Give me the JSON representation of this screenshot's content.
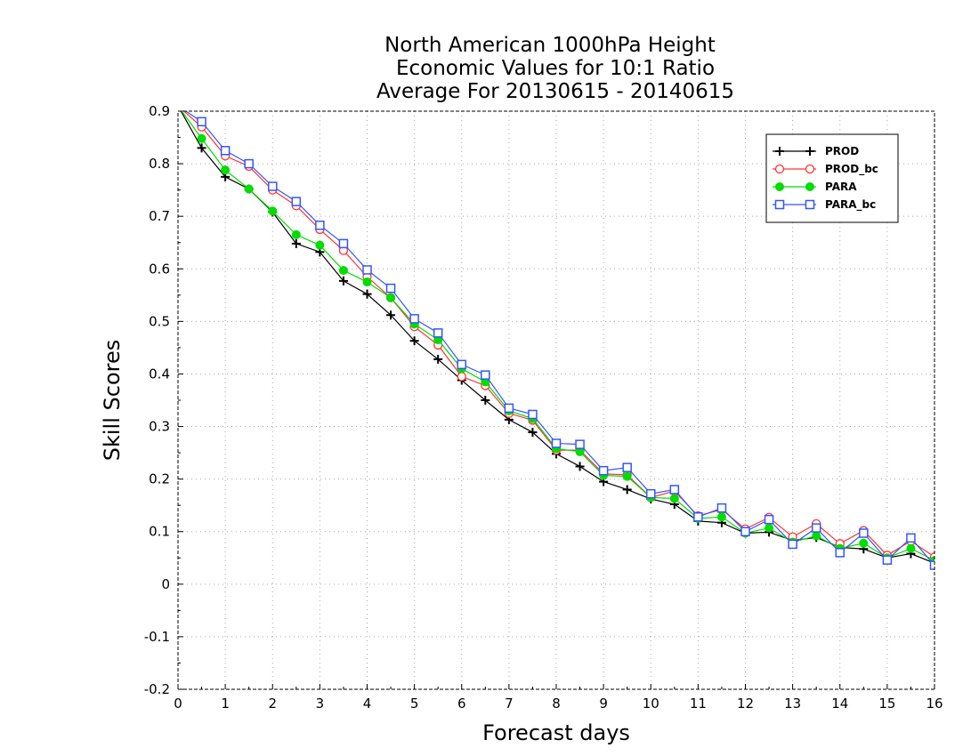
{
  "chart_data": {
    "type": "line",
    "title": [
      "North American 1000hPa Height",
      "Economic Values for 10:1 Ratio",
      "Average For 20130615 - 20140615"
    ],
    "xlabel": "Forecast days",
    "ylabel": "Skill Scores",
    "xlim": [
      0,
      16
    ],
    "ylim": [
      -0.2,
      0.9
    ],
    "xticks": [
      "0",
      "1",
      "2",
      "3",
      "4",
      "5",
      "6",
      "7",
      "8",
      "9",
      "10",
      "11",
      "12",
      "13",
      "14",
      "15",
      "16"
    ],
    "yticks": [
      "-0.2",
      "-0.1",
      "0",
      "0.1",
      "0.2",
      "0.3",
      "0.4",
      "0.5",
      "0.6",
      "0.7",
      "0.8",
      "0.9"
    ],
    "grid": true,
    "legend_position": "top-right",
    "x": [
      0,
      0.5,
      1,
      1.5,
      2,
      2.5,
      3,
      3.5,
      4,
      4.5,
      5,
      5.5,
      6,
      6.5,
      7,
      7.5,
      8,
      8.5,
      9,
      9.5,
      10,
      10.5,
      11,
      11.5,
      12,
      12.5,
      13,
      13.5,
      14,
      14.5,
      15,
      15.5,
      16
    ],
    "series": [
      {
        "name": "PROD",
        "color": "#000000",
        "marker": "plus",
        "values": [
          0.91,
          0.83,
          0.775,
          0.752,
          0.708,
          0.648,
          0.632,
          0.577,
          0.552,
          0.512,
          0.463,
          0.428,
          0.388,
          0.35,
          0.313,
          0.289,
          0.248,
          0.224,
          0.195,
          0.18,
          0.162,
          0.152,
          0.12,
          0.117,
          0.097,
          0.099,
          0.083,
          0.089,
          0.07,
          0.067,
          0.05,
          0.058,
          0.04
        ]
      },
      {
        "name": "PROD_bc",
        "color": "#ff3333",
        "marker": "circle",
        "values": [
          0.91,
          0.87,
          0.815,
          0.795,
          0.75,
          0.72,
          0.675,
          0.635,
          0.585,
          0.545,
          0.49,
          0.455,
          0.395,
          0.378,
          0.325,
          0.312,
          0.255,
          0.255,
          0.21,
          0.208,
          0.165,
          0.177,
          0.13,
          0.142,
          0.105,
          0.127,
          0.09,
          0.115,
          0.077,
          0.102,
          0.055,
          0.082,
          0.052
        ]
      },
      {
        "name": "PARA",
        "color": "#00dd00",
        "marker": "filled-circle",
        "values": [
          0.91,
          0.848,
          0.788,
          0.752,
          0.71,
          0.665,
          0.645,
          0.597,
          0.575,
          0.545,
          0.495,
          0.465,
          0.41,
          0.385,
          0.33,
          0.315,
          0.258,
          0.252,
          0.207,
          0.205,
          0.165,
          0.163,
          0.125,
          0.128,
          0.097,
          0.107,
          0.08,
          0.092,
          0.068,
          0.078,
          0.05,
          0.068,
          0.045
        ]
      },
      {
        "name": "PARA_bc",
        "color": "#3355ff",
        "marker": "square",
        "values": [
          0.91,
          0.88,
          0.825,
          0.8,
          0.757,
          0.728,
          0.683,
          0.648,
          0.598,
          0.563,
          0.505,
          0.478,
          0.418,
          0.398,
          0.335,
          0.323,
          0.268,
          0.266,
          0.216,
          0.222,
          0.172,
          0.18,
          0.128,
          0.145,
          0.1,
          0.123,
          0.076,
          0.107,
          0.06,
          0.097,
          0.046,
          0.088,
          0.036
        ]
      }
    ]
  }
}
